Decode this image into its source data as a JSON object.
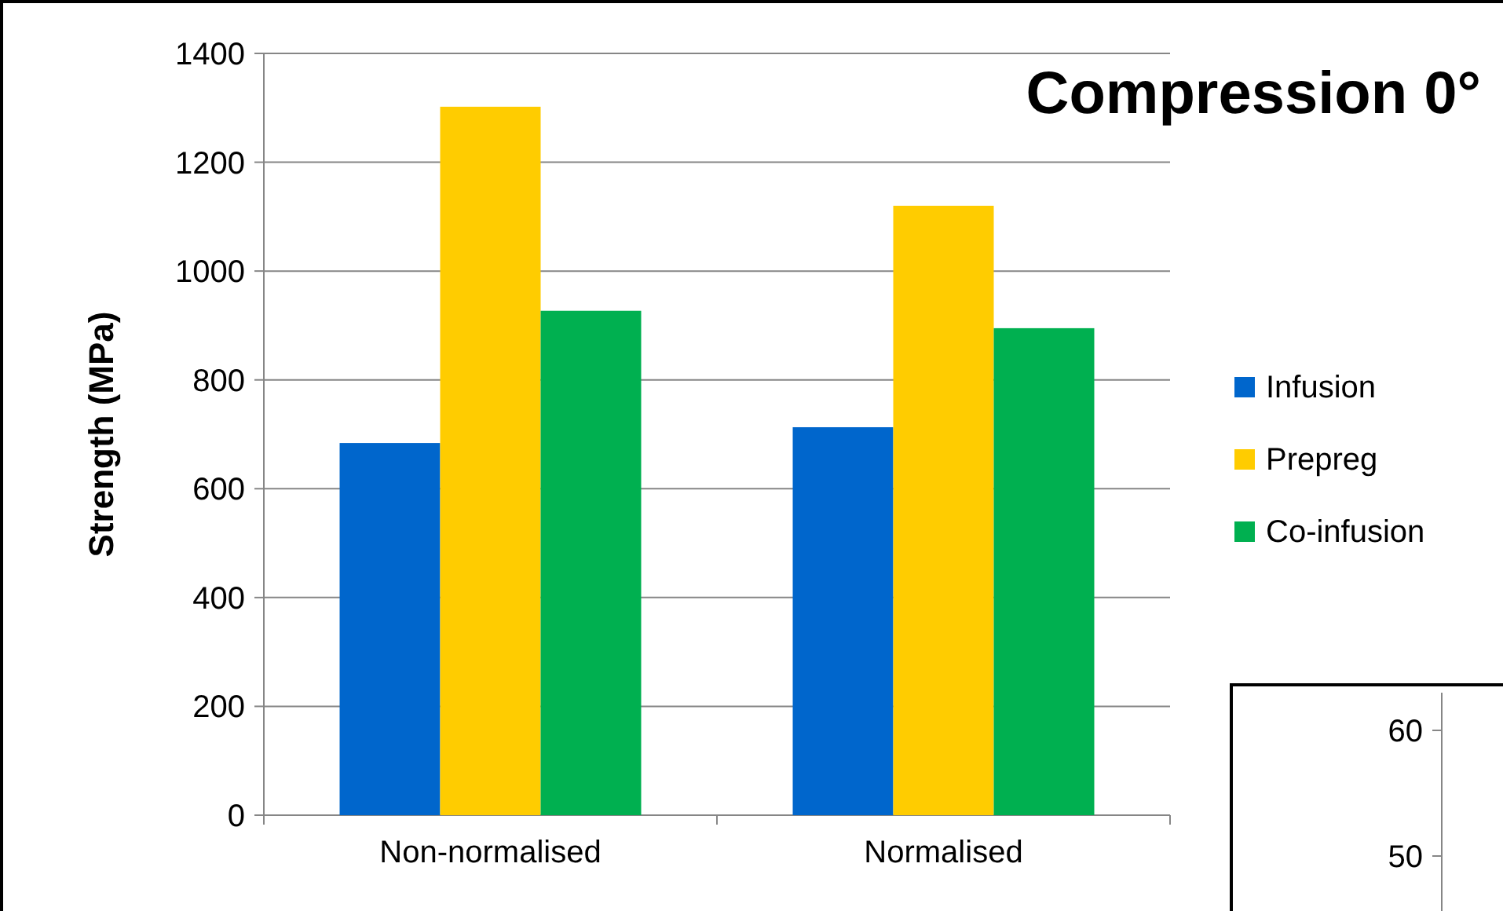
{
  "chart_data": [
    {
      "type": "bar",
      "title": "Compression 0°",
      "ylabel": "Strength (MPa)",
      "categories": [
        "Non-normalised",
        "Normalised"
      ],
      "series": [
        {
          "name": "Infusion",
          "color": "#0066cc",
          "values": [
            684,
            713
          ]
        },
        {
          "name": "Prepreg",
          "color": "#ffcc00",
          "values": [
            1302,
            1120
          ]
        },
        {
          "name": "Co-infusion",
          "color": "#00b050",
          "values": [
            927,
            895
          ]
        }
      ],
      "ylim": [
        0,
        1400
      ],
      "yticks": [
        0,
        200,
        400,
        600,
        800,
        1000,
        1200,
        1400
      ],
      "grid": "y",
      "legend": "right"
    },
    {
      "type": "other",
      "annotations": [
        "60",
        "50"
      ]
    }
  ]
}
